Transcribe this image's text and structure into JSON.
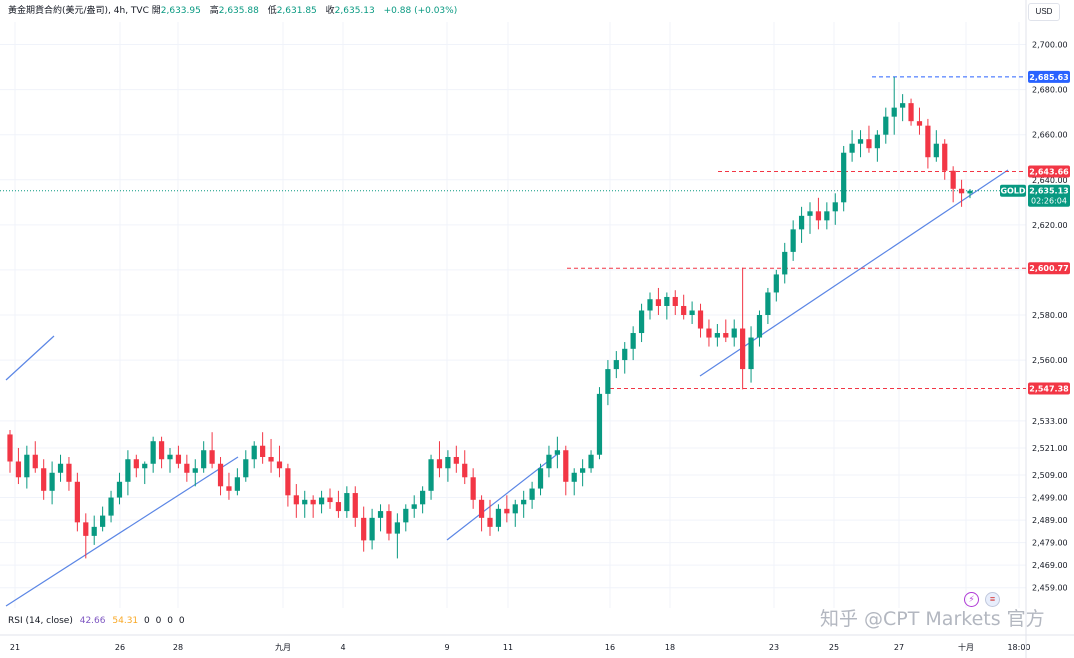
{
  "header": {
    "symbol": "黃金期貨合約(美元/盎司), 4h, TVC",
    "open_label": "開",
    "open": "2,633.95",
    "high_label": "高",
    "high": "2,635.88",
    "low_label": "低",
    "low": "2,631.85",
    "close_label": "收",
    "close": "2,635.13",
    "change": "+0.88 (+0.03%)"
  },
  "currency": "USD",
  "rsi": {
    "label": "RSI (14, close)",
    "value1": "42.66",
    "value2": "54.31",
    "extras": [
      "0",
      "0",
      "0",
      "0"
    ]
  },
  "watermark": "知乎 @CPT Markets 官方",
  "colors": {
    "up": "#089981",
    "down": "#f23645",
    "trend": "#5b86e5",
    "blue_tag": "#2962ff",
    "grid": "#f0f3fa"
  },
  "icons": [
    "lightning-icon",
    "flag-icon"
  ],
  "chart_data": {
    "type": "candlestick",
    "timeframe": "4h",
    "ylim": [
      2450,
      2710
    ],
    "y_ticks": [
      "2,459.00",
      "2,469.00",
      "2,479.00",
      "2,489.00",
      "2,499.00",
      "2,509.00",
      "2,521.00",
      "2,533.00",
      "2,560.00",
      "2,580.00",
      "2,600.00",
      "2,620.00",
      "2,640.00",
      "2,660.00",
      "2,680.00",
      "2,700.00"
    ],
    "x_ticks": [
      "21",
      "26",
      "28",
      "九月",
      "4",
      "9",
      "11",
      "16",
      "18",
      "23",
      "25",
      "27",
      "十月",
      "18:00"
    ],
    "candles": [
      [
        2527,
        2529,
        2510,
        2515
      ],
      [
        2515,
        2521,
        2505,
        2508
      ],
      [
        2508,
        2522,
        2503,
        2518
      ],
      [
        2518,
        2524,
        2510,
        2512
      ],
      [
        2512,
        2516,
        2498,
        2502
      ],
      [
        2502,
        2515,
        2496,
        2510
      ],
      [
        2510,
        2518,
        2506,
        2514
      ],
      [
        2514,
        2517,
        2502,
        2506
      ],
      [
        2506,
        2510,
        2484,
        2488
      ],
      [
        2488,
        2492,
        2472,
        2482
      ],
      [
        2482,
        2491,
        2478,
        2486
      ],
      [
        2486,
        2495,
        2484,
        2491
      ],
      [
        2491,
        2502,
        2488,
        2499
      ],
      [
        2499,
        2510,
        2496,
        2506
      ],
      [
        2506,
        2520,
        2500,
        2516
      ],
      [
        2516,
        2518,
        2508,
        2512
      ],
      [
        2512,
        2515,
        2505,
        2514
      ],
      [
        2514,
        2526,
        2510,
        2524
      ],
      [
        2524,
        2526,
        2512,
        2516
      ],
      [
        2516,
        2521,
        2510,
        2518
      ],
      [
        2518,
        2522,
        2512,
        2514
      ],
      [
        2514,
        2518,
        2506,
        2510
      ],
      [
        2510,
        2516,
        2504,
        2512
      ],
      [
        2512,
        2524,
        2510,
        2520
      ],
      [
        2520,
        2528,
        2512,
        2514
      ],
      [
        2514,
        2517,
        2500,
        2504
      ],
      [
        2504,
        2510,
        2498,
        2502
      ],
      [
        2502,
        2512,
        2500,
        2508
      ],
      [
        2508,
        2520,
        2506,
        2516
      ],
      [
        2516,
        2524,
        2512,
        2522
      ],
      [
        2522,
        2528,
        2514,
        2517
      ],
      [
        2517,
        2525,
        2510,
        2515
      ],
      [
        2515,
        2522,
        2508,
        2512
      ],
      [
        2512,
        2514,
        2495,
        2500
      ],
      [
        2500,
        2505,
        2490,
        2496
      ],
      [
        2496,
        2502,
        2490,
        2498
      ],
      [
        2498,
        2500,
        2490,
        2496
      ],
      [
        2496,
        2502,
        2492,
        2499
      ],
      [
        2499,
        2503,
        2494,
        2497
      ],
      [
        2497,
        2502,
        2490,
        2493
      ],
      [
        2493,
        2504,
        2490,
        2501
      ],
      [
        2501,
        2504,
        2486,
        2490
      ],
      [
        2490,
        2495,
        2475,
        2480
      ],
      [
        2480,
        2494,
        2476,
        2490
      ],
      [
        2490,
        2496,
        2484,
        2493
      ],
      [
        2493,
        2496,
        2480,
        2483
      ],
      [
        2483,
        2492,
        2472,
        2488
      ],
      [
        2488,
        2496,
        2484,
        2494
      ],
      [
        2494,
        2500,
        2490,
        2496
      ],
      [
        2496,
        2504,
        2492,
        2502
      ],
      [
        2502,
        2518,
        2498,
        2516
      ],
      [
        2516,
        2524,
        2508,
        2512
      ],
      [
        2512,
        2520,
        2506,
        2517
      ],
      [
        2517,
        2522,
        2510,
        2514
      ],
      [
        2514,
        2520,
        2505,
        2508
      ],
      [
        2508,
        2512,
        2494,
        2498
      ],
      [
        2498,
        2500,
        2484,
        2490
      ],
      [
        2490,
        2498,
        2482,
        2486
      ],
      [
        2486,
        2496,
        2484,
        2494
      ],
      [
        2494,
        2500,
        2488,
        2492
      ],
      [
        2492,
        2498,
        2486,
        2496
      ],
      [
        2496,
        2502,
        2490,
        2498
      ],
      [
        2498,
        2506,
        2494,
        2503
      ],
      [
        2503,
        2514,
        2500,
        2512
      ],
      [
        2512,
        2522,
        2508,
        2518
      ],
      [
        2518,
        2526,
        2512,
        2520
      ],
      [
        2520,
        2522,
        2500,
        2506
      ],
      [
        2506,
        2512,
        2500,
        2510
      ],
      [
        2510,
        2516,
        2504,
        2512
      ],
      [
        2512,
        2520,
        2510,
        2518
      ],
      [
        2518,
        2548,
        2516,
        2545
      ],
      [
        2545,
        2560,
        2540,
        2556
      ],
      [
        2556,
        2564,
        2552,
        2560
      ],
      [
        2560,
        2568,
        2554,
        2565
      ],
      [
        2565,
        2575,
        2560,
        2572
      ],
      [
        2572,
        2585,
        2568,
        2582
      ],
      [
        2582,
        2590,
        2578,
        2587
      ],
      [
        2587,
        2592,
        2580,
        2584
      ],
      [
        2584,
        2590,
        2578,
        2588
      ],
      [
        2588,
        2591,
        2580,
        2584
      ],
      [
        2584,
        2589,
        2578,
        2580
      ],
      [
        2580,
        2586,
        2576,
        2582
      ],
      [
        2582,
        2585,
        2570,
        2574
      ],
      [
        2574,
        2578,
        2566,
        2570
      ],
      [
        2570,
        2576,
        2566,
        2572
      ],
      [
        2572,
        2578,
        2568,
        2570
      ],
      [
        2570,
        2578,
        2566,
        2574
      ],
      [
        2574,
        2601,
        2547,
        2556
      ],
      [
        2556,
        2575,
        2550,
        2570
      ],
      [
        2570,
        2582,
        2566,
        2580
      ],
      [
        2580,
        2592,
        2576,
        2590
      ],
      [
        2590,
        2600,
        2586,
        2598
      ],
      [
        2598,
        2612,
        2594,
        2608
      ],
      [
        2608,
        2622,
        2604,
        2618
      ],
      [
        2618,
        2628,
        2612,
        2624
      ],
      [
        2624,
        2630,
        2616,
        2626
      ],
      [
        2626,
        2632,
        2618,
        2622
      ],
      [
        2622,
        2630,
        2618,
        2626
      ],
      [
        2626,
        2634,
        2620,
        2630
      ],
      [
        2630,
        2655,
        2626,
        2652
      ],
      [
        2652,
        2662,
        2648,
        2656
      ],
      [
        2656,
        2662,
        2650,
        2658
      ],
      [
        2658,
        2664,
        2652,
        2654
      ],
      [
        2654,
        2662,
        2648,
        2660
      ],
      [
        2660,
        2672,
        2656,
        2668
      ],
      [
        2668,
        2685.63,
        2660,
        2672
      ],
      [
        2672,
        2678,
        2666,
        2674
      ],
      [
        2674,
        2676,
        2664,
        2666
      ],
      [
        2666,
        2672,
        2660,
        2664
      ],
      [
        2664,
        2667,
        2645,
        2650
      ],
      [
        2650,
        2662,
        2648,
        2656
      ],
      [
        2656,
        2658,
        2640,
        2644
      ],
      [
        2644,
        2646,
        2630,
        2636
      ],
      [
        2636,
        2640,
        2628,
        2634
      ],
      [
        2633.95,
        2635.88,
        2631.85,
        2635.13
      ]
    ],
    "price_tags": [
      {
        "value": 2685.63,
        "label": "2,685.63",
        "kind": "blue"
      },
      {
        "value": 2643.66,
        "label": "2,643.66",
        "kind": "red"
      },
      {
        "value": 2600.77,
        "label": "2,600.77",
        "kind": "red"
      },
      {
        "value": 2547.38,
        "label": "2,547.38",
        "kind": "red"
      }
    ],
    "current_price": {
      "value": 2635.13,
      "symbol": "GOLD",
      "label": "2,635.13",
      "countdown": "02:26:04"
    }
  }
}
